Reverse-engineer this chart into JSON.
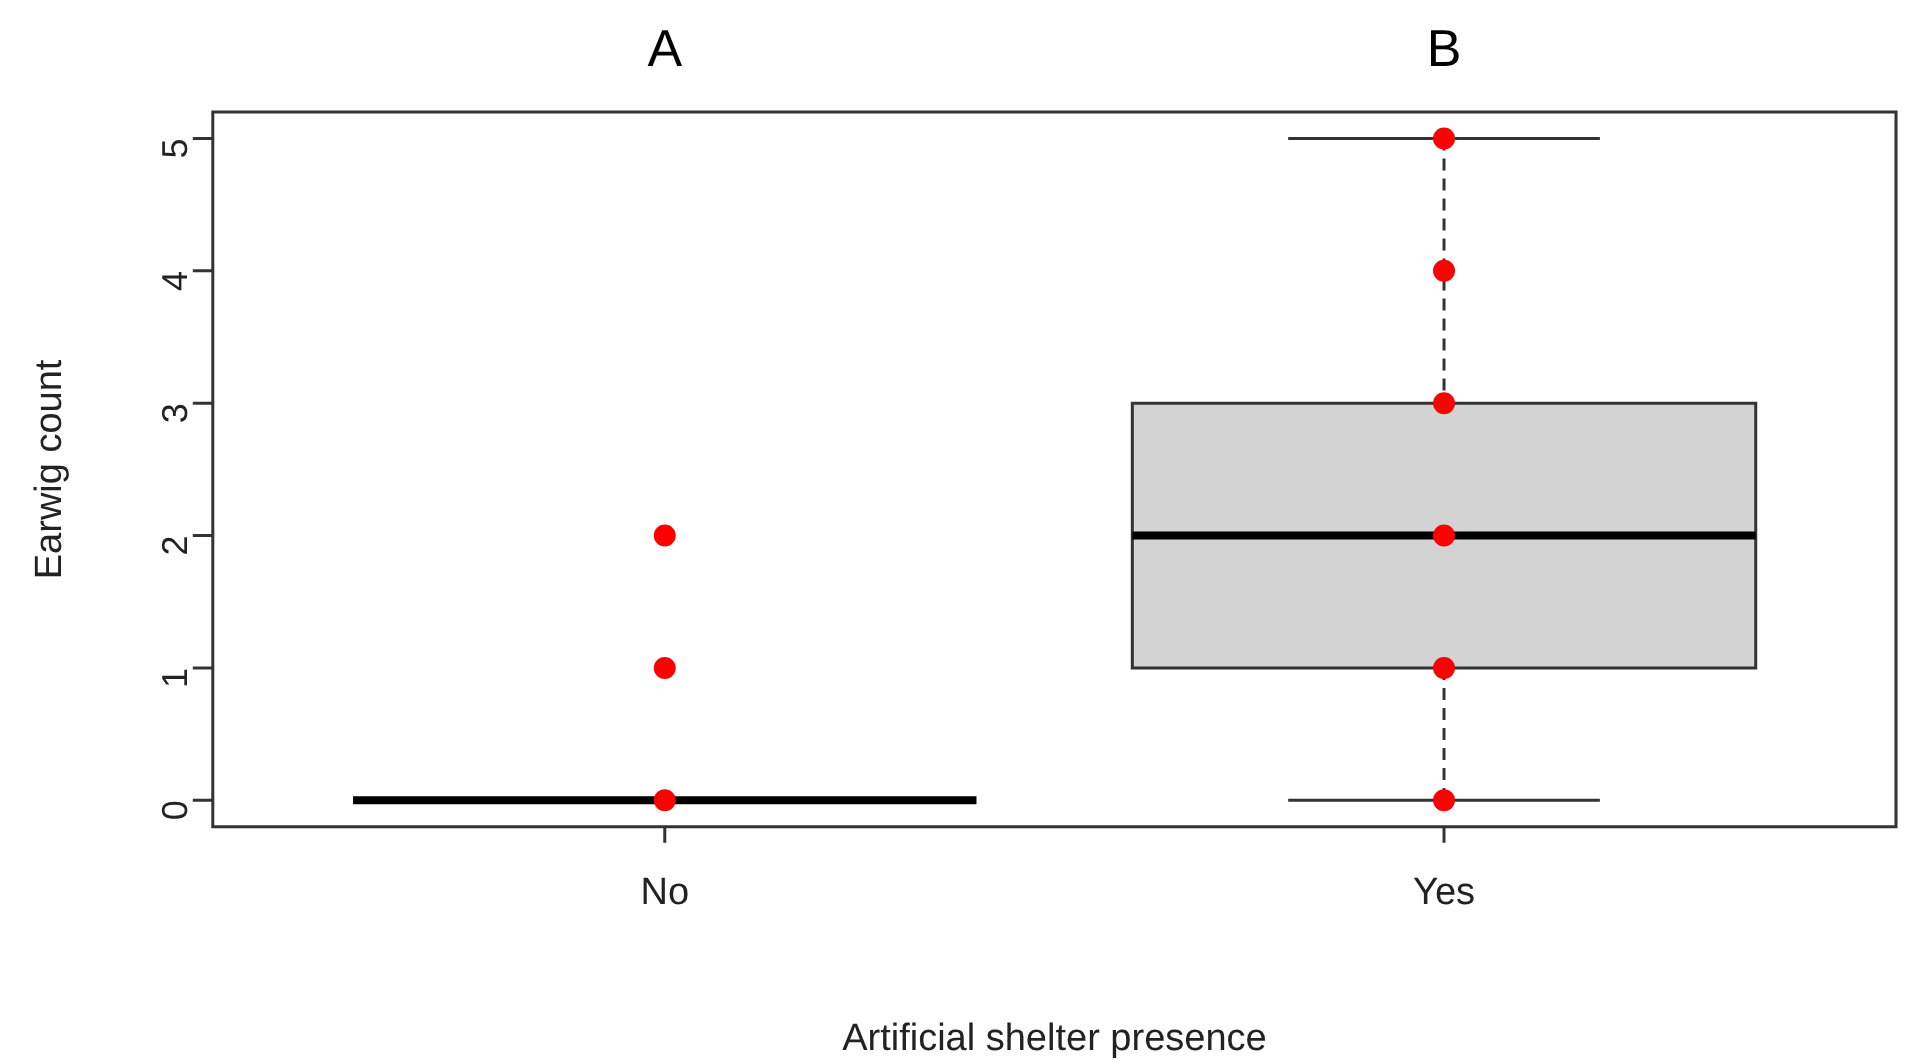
{
  "chart_data": {
    "type": "box",
    "xlabel": "Artificial shelter presence",
    "ylabel": "Earwig count",
    "categories": [
      "No",
      "Yes"
    ],
    "boxes": [
      {
        "low": 0,
        "q1": 0,
        "median": 0,
        "q3": 0,
        "high": 0
      },
      {
        "low": 0,
        "q1": 1,
        "median": 2,
        "q3": 3,
        "high": 5
      }
    ],
    "colors": [
      "#000000",
      "#d3d3d3"
    ],
    "ylim": [
      -0.2,
      5.2
    ],
    "yticks": [
      0,
      1,
      2,
      3,
      4,
      5
    ],
    "grid": false,
    "legend": false,
    "annotations": [
      "A",
      "B"
    ],
    "series": [
      {
        "type": "scatter",
        "color": "#ff0000",
        "marker": "circle",
        "x": [
          "No",
          "No",
          "No",
          "Yes",
          "Yes",
          "Yes",
          "Yes",
          "Yes",
          "Yes"
        ],
        "values": [
          2,
          1,
          0,
          5,
          4,
          3,
          2,
          1,
          0
        ]
      }
    ]
  }
}
